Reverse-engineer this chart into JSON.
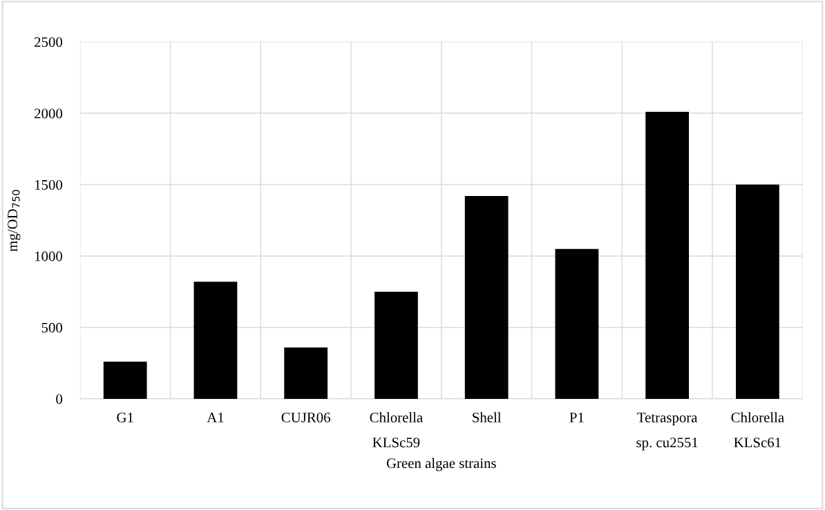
{
  "chart_data": {
    "type": "bar",
    "xlabel": "Green algae strains",
    "ylabel": "mg/OD$_{750}$",
    "categories": [
      "G1",
      "A1",
      "CUJR06",
      "Chlorella\nKLSc59",
      "Shell",
      "P1",
      "Tetraspora\nsp. cu2551",
      "Chlorella\nKLSc61"
    ],
    "values": [
      260,
      820,
      360,
      750,
      1420,
      1050,
      2010,
      1500
    ],
    "color": "#000000",
    "ylim": [
      0,
      2500
    ],
    "yticks": [
      0,
      500,
      1000,
      1500,
      2000,
      2500
    ],
    "grid": true
  }
}
